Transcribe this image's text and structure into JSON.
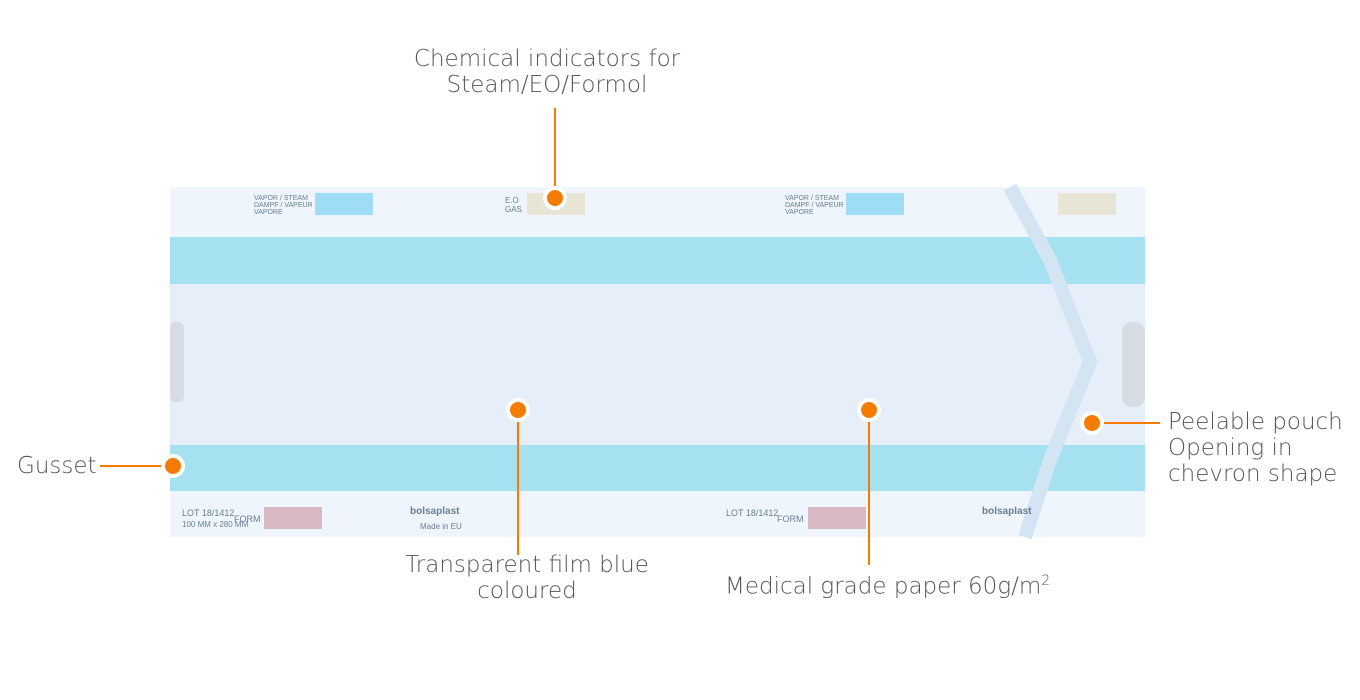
{
  "labels": {
    "chemical_indicators": [
      "Chemical indicators for",
      "Steam/EO/Formol"
    ],
    "gusset": "Gusset",
    "transparent_film": [
      "Transparent film blue",
      "coloured"
    ],
    "medical_paper": "Medical grade paper 60g/m",
    "medical_paper_sup": "2",
    "peelable": [
      "Peelable pouch",
      "Opening in",
      "chevron shape"
    ]
  },
  "pouch_print": {
    "steam": [
      "VAPOR / STEAM",
      "DAMPF / VAPEUR",
      "VAPORE"
    ],
    "eo": [
      "E.O",
      "GAS"
    ],
    "lot": "LOT 18/1412",
    "size": "100 MM x 280 MM",
    "form": "FORM",
    "brand": "bolsaplast",
    "made_in": "Made in EU"
  },
  "colors": {
    "accent": "#f57c00",
    "film_band": "#a6e1f2",
    "film": "#e4ecf8",
    "text": "#555555"
  }
}
